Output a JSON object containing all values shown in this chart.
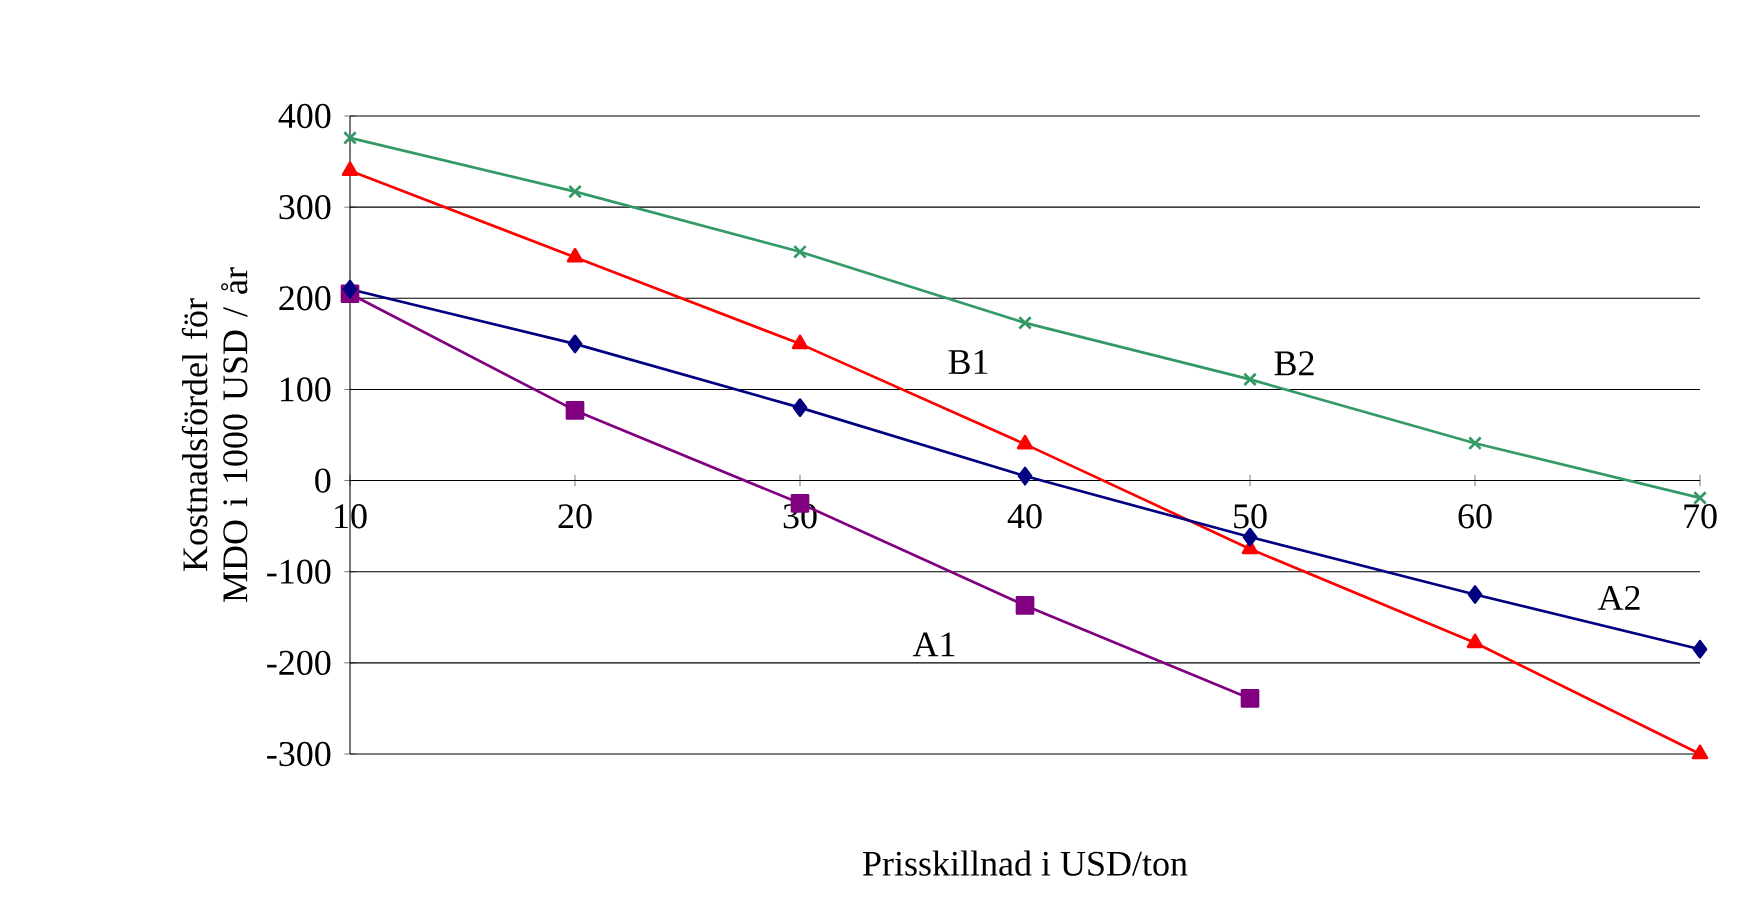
{
  "chart_data": {
    "type": "line",
    "xlabel": "Prisskillnad i USD/ton",
    "ylabel": "Kostnadsfördel för MDO i 1000 USD / år",
    "x": [
      10,
      20,
      30,
      40,
      50,
      60,
      70
    ],
    "series": [
      {
        "name": "A2",
        "color": "#000080",
        "marker": "diamond",
        "values": [
          210,
          150,
          80,
          5,
          -62,
          -125,
          -185
        ]
      },
      {
        "name": "A1",
        "color": "#800080",
        "marker": "square",
        "values": [
          205,
          77,
          -25,
          -137,
          -239,
          null,
          null
        ]
      },
      {
        "name": "B1",
        "color": "#ff0000",
        "marker": "triangle",
        "values": [
          340,
          245,
          150,
          40,
          -75,
          -178,
          -300
        ]
      },
      {
        "name": "B2",
        "color": "#339966",
        "marker": "cross",
        "values": [
          376,
          317,
          251,
          173,
          111,
          41,
          -19
        ]
      }
    ],
    "xlim": [
      10,
      70
    ],
    "xticks": [
      10,
      20,
      30,
      40,
      50,
      60,
      70
    ],
    "ylim": [
      -300,
      400
    ],
    "yticks": [
      -300,
      -200,
      -100,
      0,
      100,
      200,
      300,
      400
    ],
    "grid": "y",
    "line_style": "solid"
  }
}
